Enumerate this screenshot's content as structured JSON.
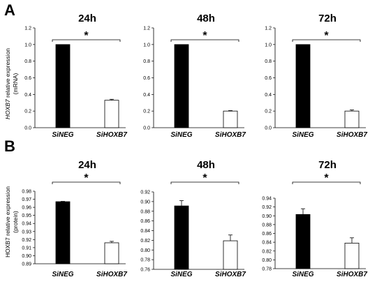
{
  "panels": [
    {
      "letter": "A",
      "ylabel_gene": "HOXB7",
      "ylabel_rest": " relative expression",
      "ylabel_line2": "(mRNA)"
    },
    {
      "letter": "B",
      "ylabel_line1": "HOXB7 relative expression",
      "ylabel_line2": "(protein)"
    }
  ],
  "chart_data": [
    {
      "panel": "A",
      "type": "bar",
      "title": "24h",
      "categories": [
        "SiNEG",
        "SiHOXB7"
      ],
      "values": [
        1.0,
        0.33
      ],
      "errors": [
        0.0,
        0.012
      ],
      "ylim": [
        0.0,
        1.2
      ],
      "yticks": [
        "0.0",
        "0.2",
        "0.4",
        "0.6",
        "0.8",
        "1.0",
        "1.2"
      ],
      "significance": "*",
      "bar_colors": [
        "#000000",
        "#ffffff"
      ],
      "grid": false
    },
    {
      "panel": "A",
      "type": "bar",
      "title": "48h",
      "categories": [
        "SiNEG",
        "SiHOXB7"
      ],
      "values": [
        1.0,
        0.2
      ],
      "errors": [
        0.0,
        0.006
      ],
      "ylim": [
        0.0,
        1.2
      ],
      "yticks": [
        "0.0",
        "0.2",
        "0.4",
        "0.6",
        "0.8",
        "1.0",
        "1.2"
      ],
      "significance": "*",
      "bar_colors": [
        "#000000",
        "#ffffff"
      ],
      "grid": false
    },
    {
      "panel": "A",
      "type": "bar",
      "title": "72h",
      "categories": [
        "SiNEG",
        "SiHOXB7"
      ],
      "values": [
        1.0,
        0.2
      ],
      "errors": [
        0.0,
        0.014
      ],
      "ylim": [
        0.0,
        1.2
      ],
      "yticks": [
        "0.0",
        "0.2",
        "0.4",
        "0.6",
        "0.8",
        "1.0",
        "1.2"
      ],
      "significance": "*",
      "bar_colors": [
        "#000000",
        "#ffffff"
      ],
      "grid": false
    },
    {
      "panel": "B",
      "type": "bar",
      "title": "24h",
      "categories": [
        "SiNEG",
        "SiHOXB7"
      ],
      "values": [
        0.967,
        0.916
      ],
      "errors": [
        0.0004,
        0.0018
      ],
      "ylim": [
        0.89,
        0.98
      ],
      "yticks": [
        "0.89",
        "0.90",
        "0.91",
        "0.92",
        "0.93",
        "0.94",
        "0.95",
        "0.96",
        "0.97",
        "0.98"
      ],
      "significance": "*",
      "bar_colors": [
        "#000000",
        "#ffffff"
      ],
      "grid": false
    },
    {
      "panel": "B",
      "type": "bar",
      "title": "48h",
      "categories": [
        "SiNEG",
        "SiHOXB7"
      ],
      "values": [
        0.891,
        0.819
      ],
      "errors": [
        0.011,
        0.012
      ],
      "ylim": [
        0.76,
        0.92
      ],
      "yticks": [
        "0.76",
        "0.78",
        "0.80",
        "0.82",
        "0.84",
        "0.86",
        "0.88",
        "0.90",
        "0.92"
      ],
      "significance": "*",
      "bar_colors": [
        "#000000",
        "#ffffff"
      ],
      "grid": false
    },
    {
      "panel": "B",
      "type": "bar",
      "title": "72h",
      "categories": [
        "SiNEG",
        "SiHOXB7"
      ],
      "values": [
        0.903,
        0.838
      ],
      "errors": [
        0.013,
        0.012
      ],
      "ylim": [
        0.78,
        0.94
      ],
      "yticks": [
        "0.78",
        "0.80",
        "0.82",
        "0.84",
        "0.86",
        "0.88",
        "0.90",
        "0.92",
        "0.94"
      ],
      "significance": "*",
      "bar_colors": [
        "#000000",
        "#ffffff"
      ],
      "grid": false
    }
  ]
}
